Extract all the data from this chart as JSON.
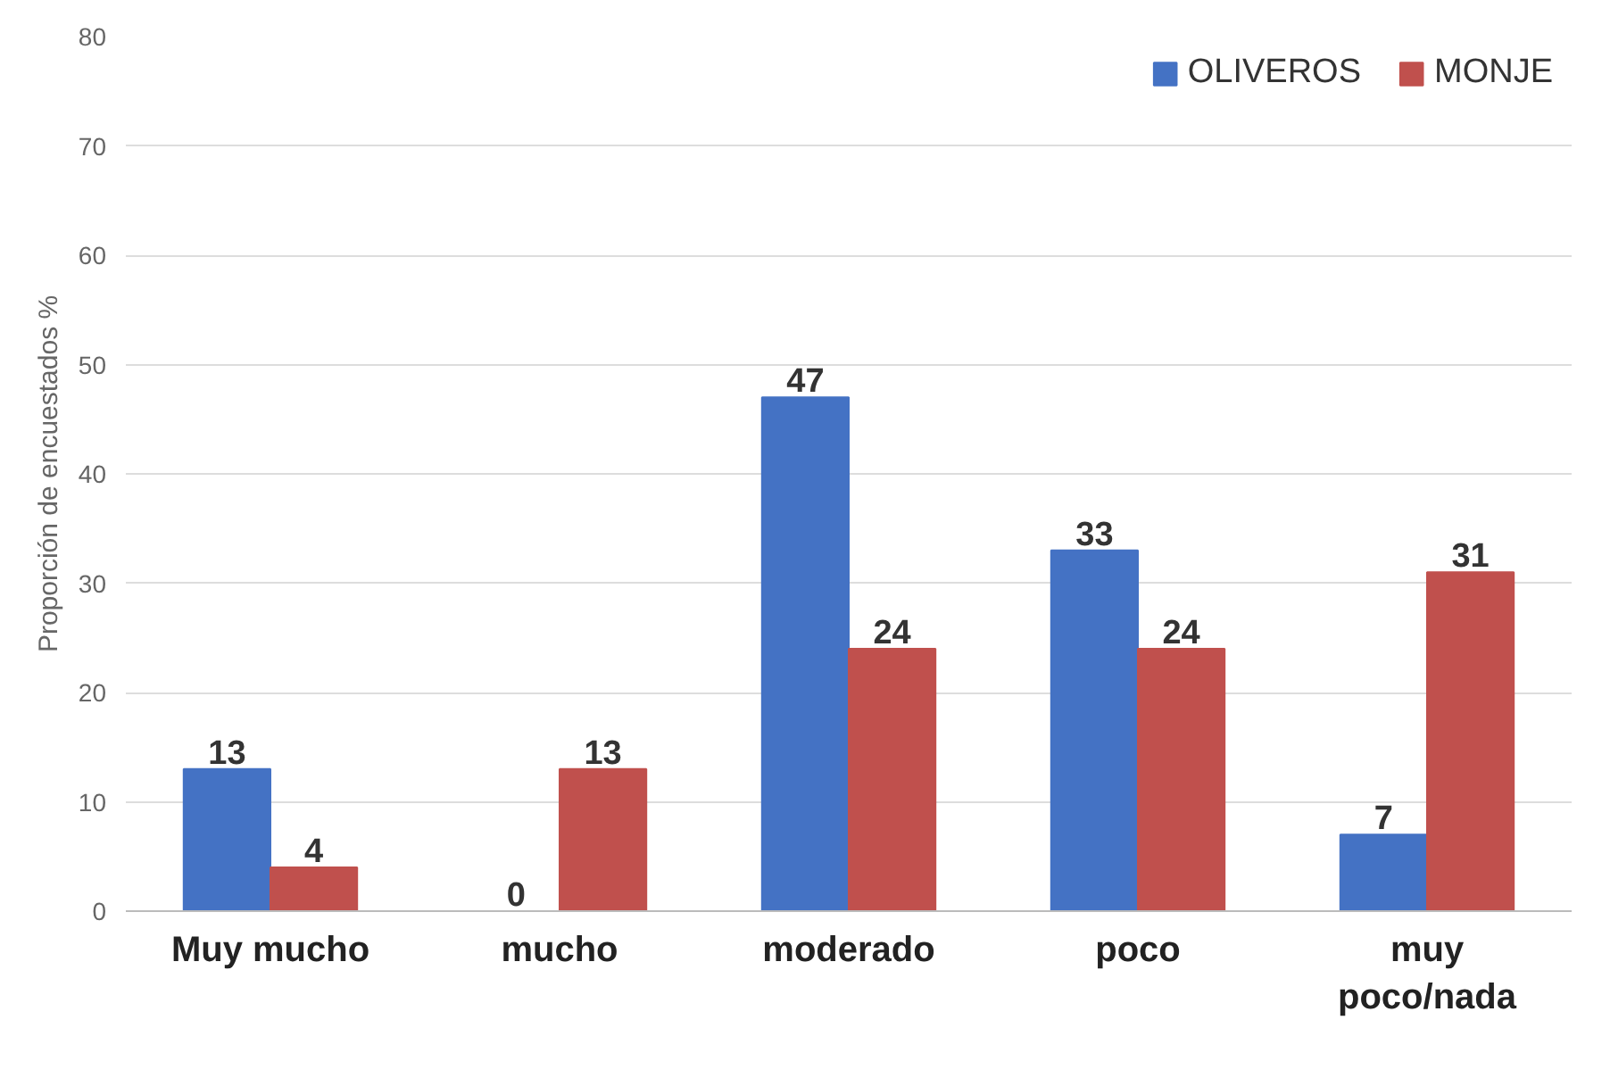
{
  "chart_data": {
    "type": "bar",
    "ylabel": "Proporción de encuestados %",
    "categories": [
      "Muy mucho",
      "mucho",
      "moderado",
      "poco",
      "muy\npoco/nada"
    ],
    "series": [
      {
        "name": "OLIVEROS",
        "color": "#4472c4",
        "values": [
          13,
          0,
          47,
          33,
          7
        ]
      },
      {
        "name": "MONJE",
        "color": "#c0504d",
        "values": [
          4,
          13,
          24,
          24,
          31
        ]
      }
    ],
    "ylim": [
      0,
      80
    ],
    "yticks": [
      0,
      10,
      20,
      30,
      40,
      50,
      60,
      70,
      80
    ],
    "grid": "y",
    "legend": "top right",
    "data_labels": true
  }
}
